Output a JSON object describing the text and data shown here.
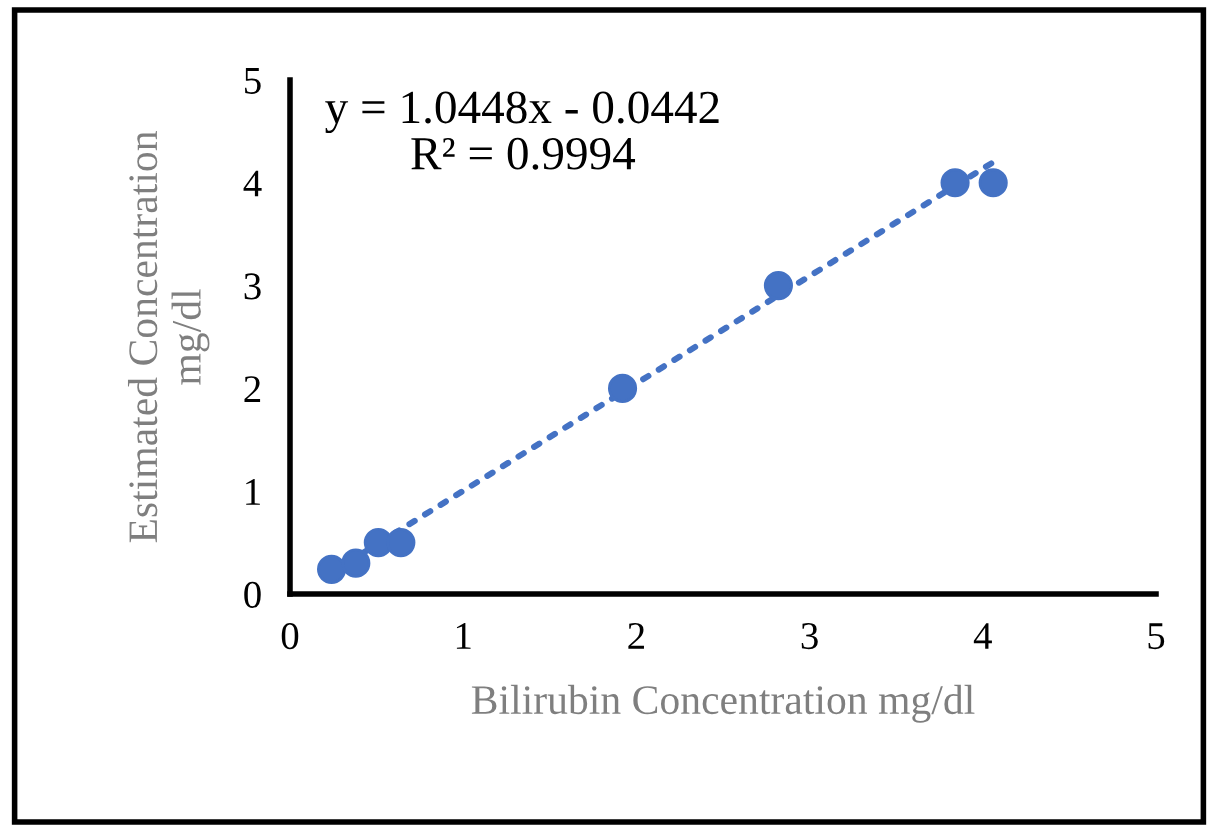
{
  "chart_data": {
    "type": "scatter",
    "xlabel": "Bilirubin Concentration mg/dl",
    "ylabel": "Estimated Concentration\nmg/dl",
    "annotations": [
      "y = 1.0448x - 0.0442\nR² = 0.9994"
    ],
    "x": [
      0.24,
      0.38,
      0.51,
      0.64,
      1.92,
      2.82,
      3.84,
      4.06
    ],
    "series": [
      {
        "color": "#4472c4",
        "values": [
          0.24,
          0.3,
          0.5,
          0.5,
          2.0,
          3.0,
          4.0,
          4.0
        ],
        "marker": "circle"
      },
      {
        "type": "line",
        "color": "#4472c4",
        "x": [
          0.24,
          4.06
        ],
        "values": [
          0.21,
          4.2
        ],
        "line_style": "dotted"
      }
    ],
    "xlim": [
      0,
      5
    ],
    "ylim": [
      0,
      5
    ],
    "xticks": [
      0,
      1,
      2,
      3,
      4,
      5
    ],
    "yticks": [
      0,
      1,
      2,
      3,
      4,
      5
    ],
    "grid": false,
    "legend": false
  }
}
